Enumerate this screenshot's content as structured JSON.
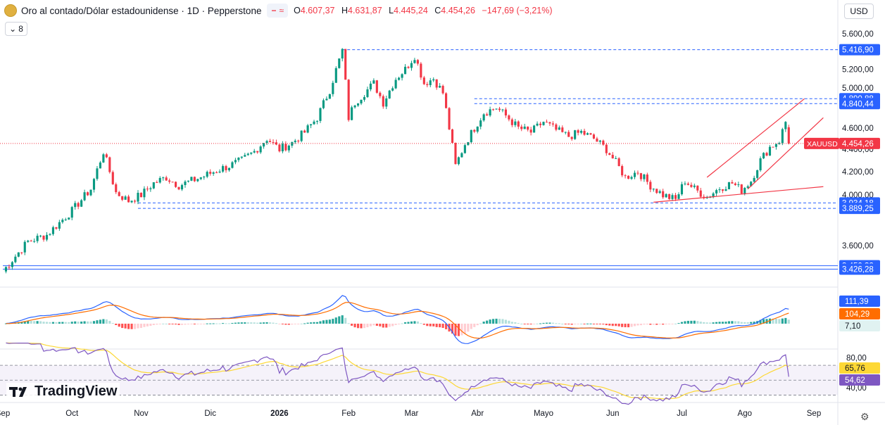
{
  "header": {
    "symbol_title": "Oro al contado/Dólar estadounidense · 1D · Pepperstone",
    "flag_dash": "−",
    "flag_wave": "≈",
    "ohlc": [
      {
        "k": "O",
        "v": "4.607,37"
      },
      {
        "k": "H",
        "v": "4.631,87"
      },
      {
        "k": "L",
        "v": "4.445,24"
      },
      {
        "k": "C",
        "v": "4.454,26"
      },
      {
        "k": "",
        "v": "−147,69 (−3,21%)"
      }
    ],
    "collapse_count": "8",
    "collapse_icon": "chevron-down-icon",
    "currency": "USD",
    "brand": "TradingView",
    "settings_icon": "gear-icon"
  },
  "colors": {
    "up": "#089981",
    "down": "#f23645",
    "level_blue": "#2962ff",
    "trend_red": "#f23645",
    "macd_line": "#2962ff",
    "signal_line": "#ff6d00",
    "rsi_line": "#7e57c2",
    "rsi_ma": "#fdd835"
  },
  "chart_data": [
    {
      "type": "candlestick",
      "ylim": [
        3300,
        5700
      ],
      "y_ticks": [
        3600,
        4000,
        4200,
        4400,
        4600,
        5000,
        5200,
        5400,
        5600
      ],
      "y_tick_labels": [
        "3.600,00",
        "4.000,00",
        "4.200,00",
        "4.400,00",
        "4.600,00",
        "5.000,00",
        "5.200,00",
        "5.400,00",
        "5.600,00"
      ],
      "x_labels": [
        "Sep",
        "Oct",
        "Nov",
        "Dic",
        "2026",
        "Feb",
        "Mar",
        "Abr",
        "Mayo",
        "Jun",
        "Jul",
        "Ago",
        "Sep"
      ],
      "x_label_positions": [
        0,
        22,
        44,
        66,
        88,
        110,
        130,
        151,
        172,
        194,
        216,
        236,
        258
      ],
      "last_bar_index": 250,
      "close_path": [
        [
          0,
          3410
        ],
        [
          8,
          3630
        ],
        [
          14,
          3680
        ],
        [
          22,
          3870
        ],
        [
          28,
          4050
        ],
        [
          32,
          4380
        ],
        [
          36,
          4020
        ],
        [
          40,
          3950
        ],
        [
          44,
          4000
        ],
        [
          48,
          4100
        ],
        [
          52,
          4150
        ],
        [
          56,
          4080
        ],
        [
          60,
          4120
        ],
        [
          64,
          4160
        ],
        [
          68,
          4210
        ],
        [
          72,
          4250
        ],
        [
          76,
          4300
        ],
        [
          80,
          4380
        ],
        [
          84,
          4500
        ],
        [
          88,
          4400
        ],
        [
          92,
          4460
        ],
        [
          96,
          4560
        ],
        [
          100,
          4700
        ],
        [
          104,
          4980
        ],
        [
          107,
          5300
        ],
        [
          108,
          5410
        ],
        [
          110,
          4700
        ],
        [
          112,
          4850
        ],
        [
          115,
          4950
        ],
        [
          118,
          5050
        ],
        [
          121,
          4850
        ],
        [
          125,
          5100
        ],
        [
          128,
          5200
        ],
        [
          131,
          5350
        ],
        [
          134,
          5050
        ],
        [
          137,
          5100
        ],
        [
          140,
          4950
        ],
        [
          142,
          4600
        ],
        [
          144,
          4250
        ],
        [
          147,
          4450
        ],
        [
          150,
          4600
        ],
        [
          153,
          4750
        ],
        [
          157,
          4800
        ],
        [
          160,
          4720
        ],
        [
          164,
          4600
        ],
        [
          168,
          4560
        ],
        [
          172,
          4660
        ],
        [
          176,
          4580
        ],
        [
          180,
          4520
        ],
        [
          184,
          4560
        ],
        [
          188,
          4500
        ],
        [
          192,
          4400
        ],
        [
          195,
          4280
        ],
        [
          198,
          4150
        ],
        [
          202,
          4200
        ],
        [
          206,
          4080
        ],
        [
          210,
          4000
        ],
        [
          214,
          3960
        ],
        [
          217,
          4120
        ],
        [
          220,
          4050
        ],
        [
          224,
          3980
        ],
        [
          228,
          4060
        ],
        [
          232,
          4100
        ],
        [
          235,
          4040
        ],
        [
          238,
          4120
        ],
        [
          241,
          4300
        ],
        [
          244,
          4420
        ],
        [
          247,
          4480
        ],
        [
          249,
          4660
        ],
        [
          250,
          4454
        ]
      ],
      "levels": [
        {
          "value": 5416.9,
          "label": "5.416,90",
          "style": "dashed",
          "from_index": 108
        },
        {
          "value": 4890.88,
          "label": "4.890,88",
          "style": "dashed",
          "from_index": 150
        },
        {
          "value": 4840.44,
          "label": "4.840,44",
          "style": "dashed",
          "from_index": 150
        },
        {
          "value": 3934.18,
          "label": "3.934,18",
          "style": "dashed",
          "from_index": 43
        },
        {
          "value": 3889.25,
          "label": "3.889,25",
          "style": "dashed",
          "from_index": 43
        },
        {
          "value": 3450.32,
          "label": "3.450,32",
          "style": "solid",
          "from_index": 0
        },
        {
          "value": 3426.28,
          "label": "3.426,28",
          "style": "solid",
          "from_index": 0
        }
      ],
      "current_price": {
        "value": 4454.26,
        "label": "4.454,26",
        "tag": "XAUUSD"
      },
      "trendlines": [
        {
          "from": [
            224,
            4150
          ],
          "to": [
            255,
            4890
          ]
        },
        {
          "from": [
            237,
            4050
          ],
          "to": [
            261,
            4700
          ]
        },
        {
          "from": [
            207,
            3940
          ],
          "to": [
            261,
            4070
          ]
        }
      ]
    },
    {
      "type": "line",
      "name": "MACD",
      "values_labels": [
        "111,39",
        "104,29",
        "7,10"
      ],
      "macd_last": 111.39,
      "signal_last": 104.29,
      "hist_last": 7.1
    },
    {
      "type": "line",
      "name": "RSI",
      "y_tick_labels": [
        "80,00",
        "40,00"
      ],
      "levels": [
        70,
        50,
        30
      ],
      "values_labels": [
        "65,76",
        "54,62"
      ],
      "rsi_last": 54.62,
      "ma_last": 65.76
    }
  ]
}
